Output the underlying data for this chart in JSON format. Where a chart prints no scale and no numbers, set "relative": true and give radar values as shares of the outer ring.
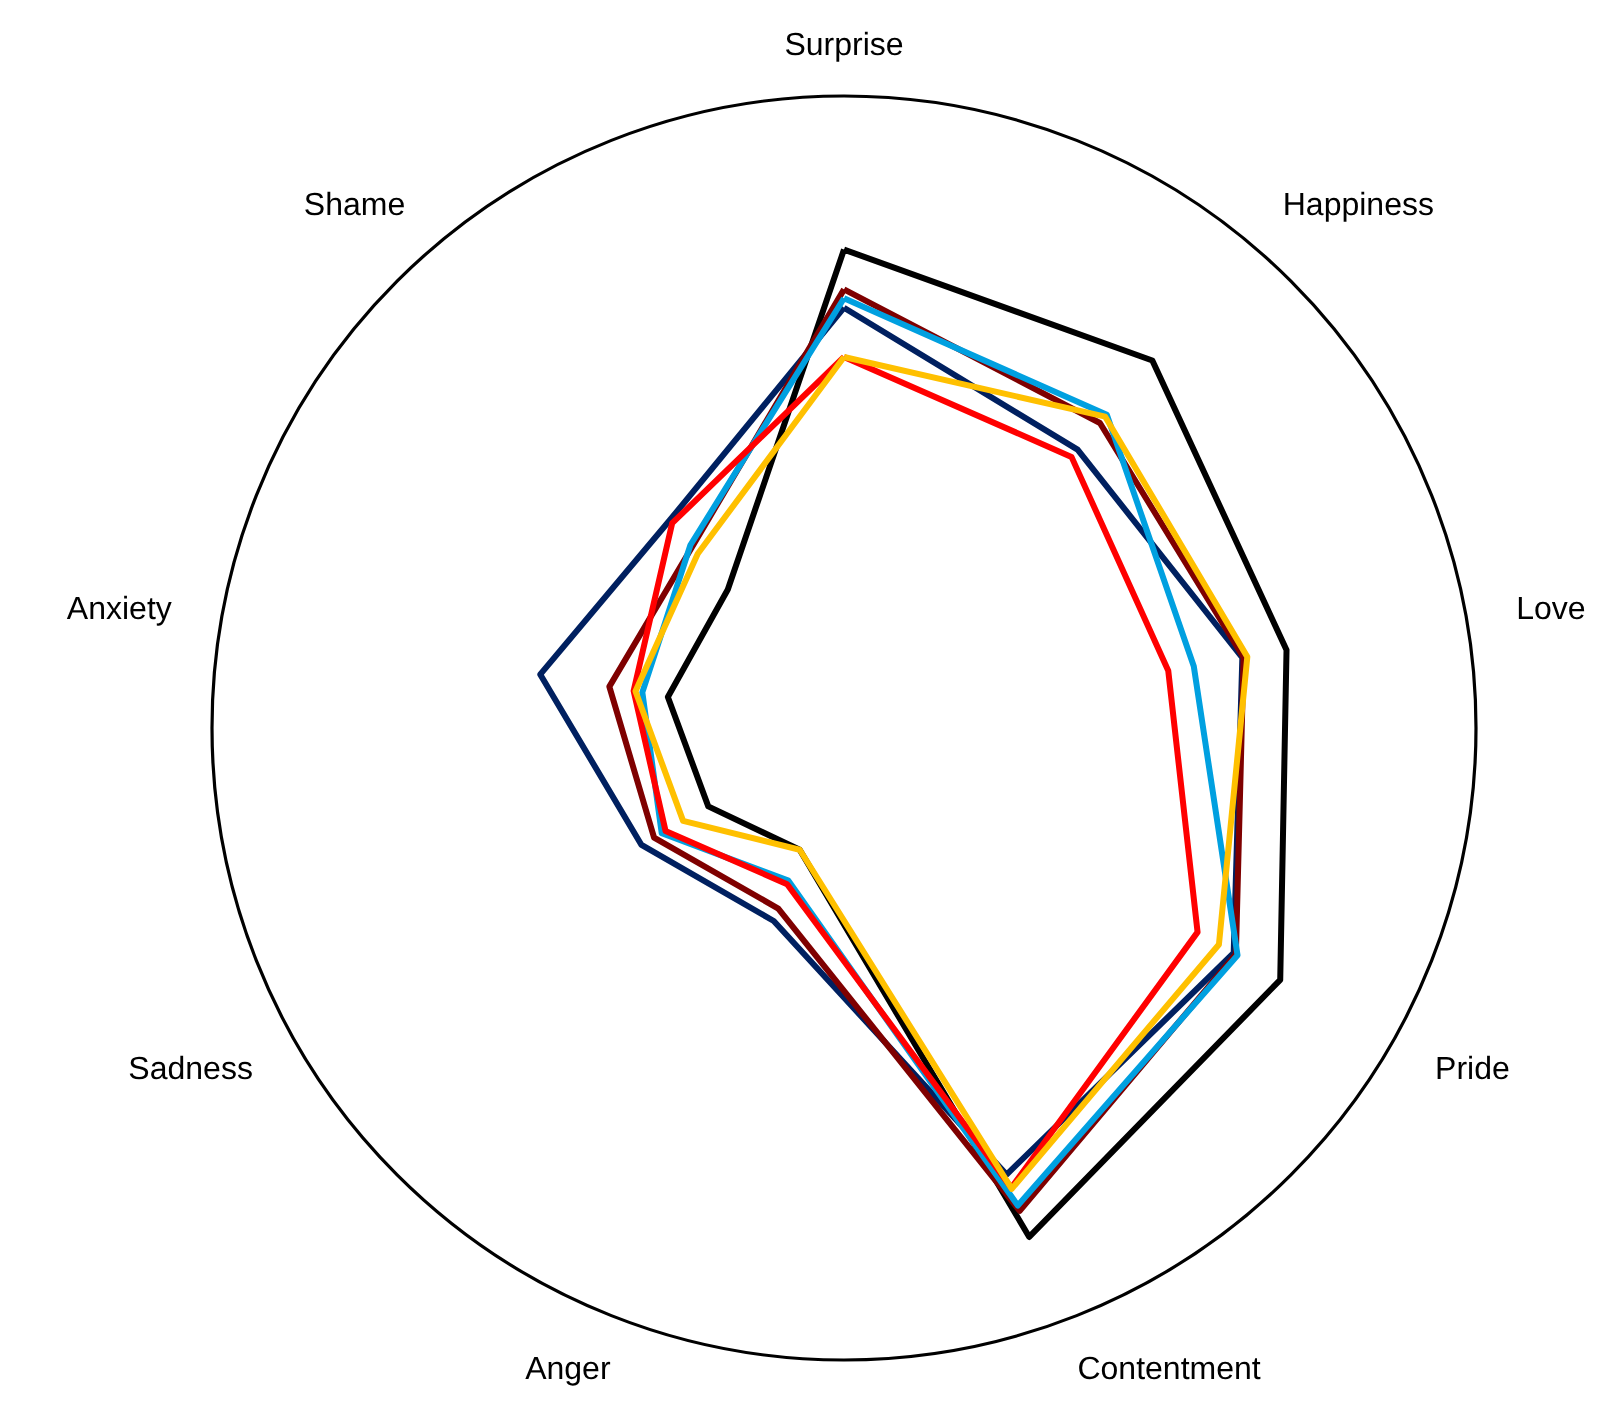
{
  "chart_data": {
    "type": "radar",
    "relative": true,
    "categories": [
      "Surprise",
      "Happiness",
      "Love",
      "Pride",
      "Contentment",
      "Anger",
      "Sadness",
      "Anxiety",
      "Shame"
    ],
    "series": [
      {
        "color": "#000000",
        "values": [
          0.757,
          0.759,
          0.711,
          0.797,
          0.857,
          0.205,
          0.248,
          0.283,
          0.286
        ]
      },
      {
        "color": "#002060",
        "values": [
          0.665,
          0.575,
          0.64,
          0.712,
          0.752,
          0.325,
          0.37,
          0.488,
          0.429
        ]
      },
      {
        "color": "#7f0000",
        "values": [
          0.694,
          0.63,
          0.642,
          0.716,
          0.813,
          0.304,
          0.347,
          0.377,
          0.374
        ]
      },
      {
        "color": "#00a0e0",
        "values": [
          0.68,
          0.647,
          0.562,
          0.719,
          0.804,
          0.257,
          0.333,
          0.324,
          0.378
        ]
      },
      {
        "color": "#ff0000",
        "values": [
          0.587,
          0.56,
          0.521,
          0.646,
          0.774,
          0.263,
          0.326,
          0.338,
          0.423
        ]
      },
      {
        "color": "#ffc000",
        "values": [
          0.587,
          0.643,
          0.648,
          0.685,
          0.776,
          0.205,
          0.294,
          0.335,
          0.36
        ]
      }
    ]
  }
}
